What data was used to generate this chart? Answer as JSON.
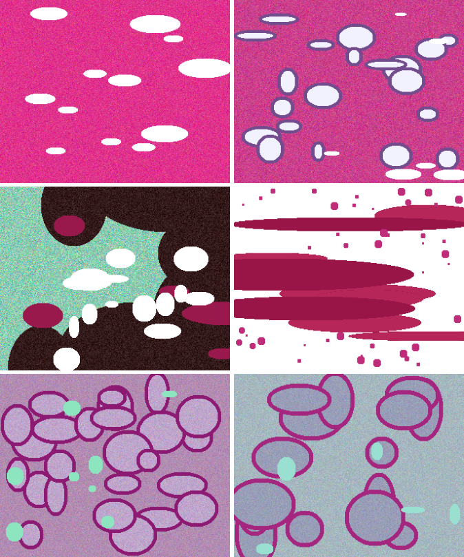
{
  "figsize": [
    6.74,
    8.09
  ],
  "dpi": 100,
  "nrows": 3,
  "ncols": 2,
  "hspace": 0.02,
  "wspace": 0.02,
  "border_color": "#ffffff",
  "border_linewidth": 2
}
